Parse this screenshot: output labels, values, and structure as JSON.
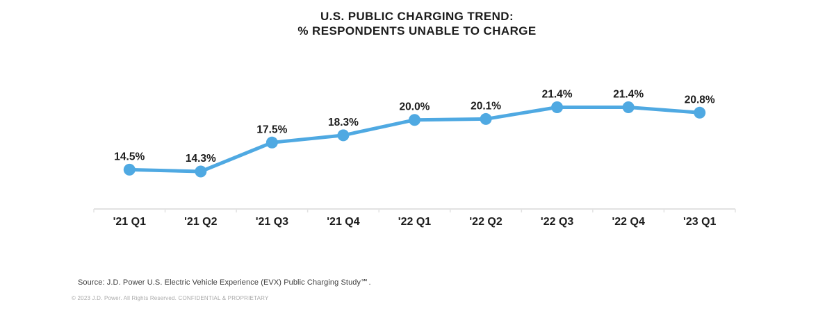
{
  "title": {
    "line1": "U.S. PUBLIC CHARGING TREND:",
    "line2": "% RESPONDENTS UNABLE TO CHARGE"
  },
  "chart_data": {
    "type": "line",
    "title": "U.S. PUBLIC CHARGING TREND: % RESPONDENTS UNABLE TO CHARGE",
    "categories": [
      "'21 Q1",
      "'21 Q2",
      "'21 Q3",
      "'21 Q4",
      "'22 Q1",
      "'22 Q2",
      "'22 Q3",
      "'22 Q4",
      "'23 Q1"
    ],
    "series": [
      {
        "name": "% respondents unable to charge",
        "values": [
          14.5,
          14.3,
          17.5,
          18.3,
          20.0,
          20.1,
          21.4,
          21.4,
          20.8
        ]
      }
    ],
    "value_label_format": "percent_one_decimal",
    "xlabel": "",
    "ylabel": "",
    "ylim": [
      13,
      23
    ],
    "grid": false,
    "legend": false,
    "marker": "circle"
  },
  "colors": {
    "line": "#4FA9E2",
    "data_label": "#1c1c1c",
    "axis_label": "#1c1c1c",
    "axis_line": "#e2e2e2"
  },
  "footer": {
    "source": "Source: J.D. Power U.S. Electric Vehicle Experience (EVX) Public Charging Study℠.",
    "copyright": "© 2023 J.D. Power. All Rights Reserved. CONFIDENTIAL & PROPRIETARY"
  }
}
